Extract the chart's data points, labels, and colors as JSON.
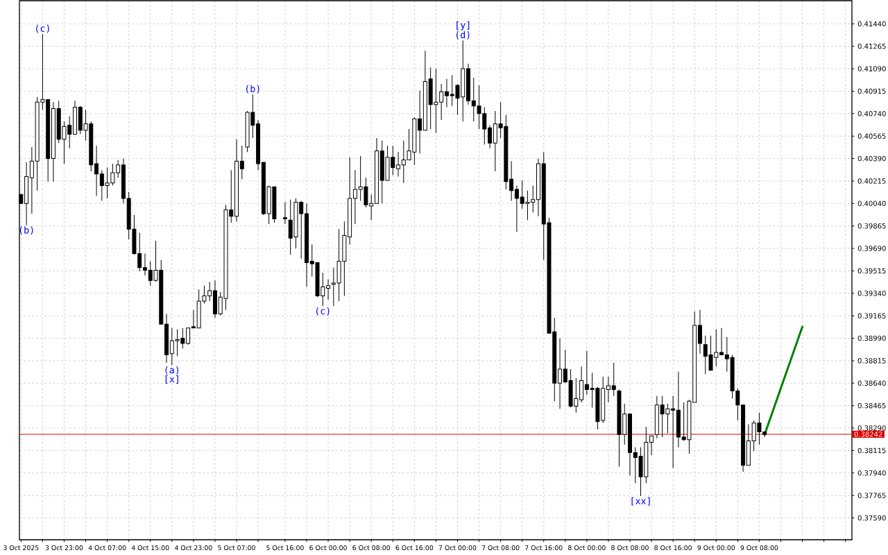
{
  "chart_data": {
    "type": "candlestick",
    "x": [
      "2025-10-03T15:00",
      "2025-10-03T16:00",
      "2025-10-03T17:00",
      "2025-10-03T18:00",
      "2025-10-03T19:00",
      "2025-10-03T20:00",
      "2025-10-03T21:00",
      "2025-10-03T22:00",
      "2025-10-03T23:00",
      "2025-10-04T00:00",
      "2025-10-04T01:00",
      "2025-10-04T02:00",
      "2025-10-04T03:00",
      "2025-10-04T04:00",
      "2025-10-04T05:00",
      "2025-10-04T06:00",
      "2025-10-04T07:00",
      "2025-10-04T08:00",
      "2025-10-04T09:00",
      "2025-10-04T10:00",
      "2025-10-04T11:00",
      "2025-10-04T12:00",
      "2025-10-04T13:00",
      "2025-10-04T14:00",
      "2025-10-04T15:00",
      "2025-10-04T16:00",
      "2025-10-04T17:00",
      "2025-10-04T18:00",
      "2025-10-04T19:00",
      "2025-10-04T20:00",
      "2025-10-04T21:00",
      "2025-10-04T22:00",
      "2025-10-04T23:00",
      "2025-10-05T00:00",
      "2025-10-05T01:00",
      "2025-10-05T02:00",
      "2025-10-05T03:00",
      "2025-10-05T04:00",
      "2025-10-05T05:00",
      "2025-10-05T06:00",
      "2025-10-05T07:00",
      "2025-10-05T08:00",
      "2025-10-05T09:00",
      "2025-10-05T10:00",
      "2025-10-05T11:00",
      "2025-10-05T12:00",
      "2025-10-05T13:00",
      "2025-10-05T14:00",
      "2025-10-05T16:00",
      "2025-10-05T17:00",
      "2025-10-05T18:00",
      "2025-10-05T19:00",
      "2025-10-05T20:00",
      "2025-10-05T21:00",
      "2025-10-05T22:00",
      "2025-10-05T23:00",
      "2025-10-06T00:00",
      "2025-10-06T01:00",
      "2025-10-06T02:00",
      "2025-10-06T03:00",
      "2025-10-06T04:00",
      "2025-10-06T05:00",
      "2025-10-06T06:00",
      "2025-10-06T07:00",
      "2025-10-06T08:00",
      "2025-10-06T09:00",
      "2025-10-06T10:00",
      "2025-10-06T11:00",
      "2025-10-06T12:00",
      "2025-10-06T13:00",
      "2025-10-06T14:00",
      "2025-10-06T15:00",
      "2025-10-06T16:00",
      "2025-10-06T17:00",
      "2025-10-06T18:00",
      "2025-10-06T19:00",
      "2025-10-06T20:00",
      "2025-10-06T21:00",
      "2025-10-06T22:00",
      "2025-10-06T23:00",
      "2025-10-07T00:00",
      "2025-10-07T01:00",
      "2025-10-07T02:00",
      "2025-10-07T03:00",
      "2025-10-07T04:00",
      "2025-10-07T05:00",
      "2025-10-07T06:00",
      "2025-10-07T07:00",
      "2025-10-07T08:00",
      "2025-10-07T09:00",
      "2025-10-07T10:00",
      "2025-10-07T11:00",
      "2025-10-07T12:00",
      "2025-10-07T13:00",
      "2025-10-07T14:00",
      "2025-10-07T15:00",
      "2025-10-07T16:00",
      "2025-10-07T17:00",
      "2025-10-07T18:00",
      "2025-10-07T19:00",
      "2025-10-07T20:00",
      "2025-10-07T21:00",
      "2025-10-07T22:00",
      "2025-10-07T23:00",
      "2025-10-08T00:00",
      "2025-10-08T01:00",
      "2025-10-08T02:00",
      "2025-10-08T03:00",
      "2025-10-08T04:00",
      "2025-10-08T05:00",
      "2025-10-08T06:00",
      "2025-10-08T07:00",
      "2025-10-08T08:00",
      "2025-10-08T09:00",
      "2025-10-08T10:00",
      "2025-10-08T11:00",
      "2025-10-08T12:00",
      "2025-10-08T13:00",
      "2025-10-08T14:00",
      "2025-10-08T15:00",
      "2025-10-08T16:00",
      "2025-10-08T17:00",
      "2025-10-08T18:00",
      "2025-10-08T19:00",
      "2025-10-08T20:00",
      "2025-10-08T21:00",
      "2025-10-08T22:00",
      "2025-10-08T23:00",
      "2025-10-09T00:00",
      "2025-10-09T01:00",
      "2025-10-09T02:00",
      "2025-10-09T03:00",
      "2025-10-09T04:00",
      "2025-10-09T05:00",
      "2025-10-09T06:00",
      "2025-10-09T07:00",
      "2025-10-09T08:00",
      "2025-10-09T09:00"
    ],
    "ohlc": [
      [
        0.4011,
        0.4011,
        0.4004,
        0.4004
      ],
      [
        0.4004,
        0.4036,
        0.3987,
        0.4025
      ],
      [
        0.4024,
        0.4048,
        0.3996,
        0.4037
      ],
      [
        0.4037,
        0.4087,
        0.4014,
        0.4083
      ],
      [
        0.4083,
        0.4136,
        0.4077,
        0.4085
      ],
      [
        0.4085,
        0.4085,
        0.4021,
        0.4039
      ],
      [
        0.4039,
        0.4083,
        0.4021,
        0.4078
      ],
      [
        0.4078,
        0.4084,
        0.4051,
        0.4054
      ],
      [
        0.4054,
        0.4068,
        0.4035,
        0.4064
      ],
      [
        0.4065,
        0.4072,
        0.4047,
        0.4058
      ],
      [
        0.4058,
        0.4084,
        0.4058,
        0.4079
      ],
      [
        0.4079,
        0.408,
        0.4058,
        0.4061
      ],
      [
        0.4061,
        0.4077,
        0.4053,
        0.4066
      ],
      [
        0.4066,
        0.4068,
        0.4029,
        0.4034
      ],
      [
        0.4035,
        0.4049,
        0.401,
        0.4027
      ],
      [
        0.4027,
        0.403,
        0.4006,
        0.4018
      ],
      [
        0.4018,
        0.4032,
        0.4008,
        0.402
      ],
      [
        0.402,
        0.4035,
        0.4018,
        0.4028
      ],
      [
        0.4028,
        0.4038,
        0.4024,
        0.4034
      ],
      [
        0.4034,
        0.4039,
        0.4004,
        0.4008
      ],
      [
        0.4008,
        0.4013,
        0.3976,
        0.3984
      ],
      [
        0.3984,
        0.3995,
        0.3964,
        0.3965
      ],
      [
        0.3965,
        0.3981,
        0.3951,
        0.3954
      ],
      [
        0.3954,
        0.3965,
        0.3948,
        0.3952
      ],
      [
        0.3952,
        0.3959,
        0.394,
        0.3944
      ],
      [
        0.3944,
        0.3975,
        0.3943,
        0.3952
      ],
      [
        0.3952,
        0.396,
        0.391,
        0.391
      ],
      [
        0.391,
        0.3918,
        0.388,
        0.3886
      ],
      [
        0.3887,
        0.3907,
        0.3878,
        0.3897
      ],
      [
        0.3897,
        0.3906,
        0.3885,
        0.3898
      ],
      [
        0.3899,
        0.3907,
        0.3891,
        0.3895
      ],
      [
        0.3895,
        0.3907,
        0.3894,
        0.3907
      ],
      [
        0.3908,
        0.3921,
        0.3907,
        0.3907
      ],
      [
        0.3907,
        0.3937,
        0.3907,
        0.3928
      ],
      [
        0.3928,
        0.394,
        0.3926,
        0.3932
      ],
      [
        0.3932,
        0.3943,
        0.3928,
        0.3936
      ],
      [
        0.3936,
        0.3944,
        0.3915,
        0.3918
      ],
      [
        0.3918,
        0.3935,
        0.3917,
        0.3931
      ],
      [
        0.393,
        0.4003,
        0.3921,
        0.3999
      ],
      [
        0.3999,
        0.403,
        0.3989,
        0.3994
      ],
      [
        0.3994,
        0.4054,
        0.399,
        0.4037
      ],
      [
        0.4037,
        0.4049,
        0.4023,
        0.4031
      ],
      [
        0.4048,
        0.4076,
        0.4044,
        0.4075
      ],
      [
        0.4075,
        0.4089,
        0.4055,
        0.4065
      ],
      [
        0.4066,
        0.4069,
        0.403,
        0.4035
      ],
      [
        0.4036,
        0.4036,
        0.3995,
        0.3996
      ],
      [
        0.3996,
        0.4018,
        0.3988,
        0.4017
      ],
      [
        0.4017,
        0.4017,
        0.3989,
        0.3992
      ],
      [
        0.3993,
        0.4005,
        0.3988,
        0.3992
      ],
      [
        0.3991,
        0.4007,
        0.3964,
        0.3977
      ],
      [
        0.3978,
        0.4008,
        0.3969,
        0.4005
      ],
      [
        0.4005,
        0.4006,
        0.3961,
        0.3996
      ],
      [
        0.3996,
        0.4004,
        0.3939,
        0.3958
      ],
      [
        0.3959,
        0.3972,
        0.3947,
        0.3957
      ],
      [
        0.3958,
        0.3958,
        0.3931,
        0.3932
      ],
      [
        0.3932,
        0.395,
        0.3924,
        0.3939
      ],
      [
        0.3938,
        0.3945,
        0.3929,
        0.394
      ],
      [
        0.3941,
        0.3954,
        0.3924,
        0.3942
      ],
      [
        0.3942,
        0.3984,
        0.3928,
        0.3959
      ],
      [
        0.3959,
        0.399,
        0.3932,
        0.3979
      ],
      [
        0.3978,
        0.404,
        0.3972,
        0.4008
      ],
      [
        0.4008,
        0.403,
        0.3988,
        0.4015
      ],
      [
        0.4015,
        0.4041,
        0.4006,
        0.4017
      ],
      [
        0.4017,
        0.4024,
        0.4001,
        0.4003
      ],
      [
        0.4002,
        0.4011,
        0.3991,
        0.4004
      ],
      [
        0.4004,
        0.4055,
        0.4004,
        0.4045
      ],
      [
        0.4045,
        0.4053,
        0.4004,
        0.4022
      ],
      [
        0.4022,
        0.4049,
        0.4022,
        0.404
      ],
      [
        0.404,
        0.4049,
        0.4026,
        0.4032
      ],
      [
        0.4031,
        0.4044,
        0.4025,
        0.4034
      ],
      [
        0.4034,
        0.4053,
        0.402,
        0.4038
      ],
      [
        0.4038,
        0.4062,
        0.4038,
        0.4045
      ],
      [
        0.4044,
        0.4071,
        0.4034,
        0.407
      ],
      [
        0.407,
        0.4092,
        0.4043,
        0.4061
      ],
      [
        0.4061,
        0.4123,
        0.4061,
        0.4099
      ],
      [
        0.4101,
        0.411,
        0.4062,
        0.4081
      ],
      [
        0.4081,
        0.4109,
        0.4059,
        0.4083
      ],
      [
        0.4083,
        0.4097,
        0.4069,
        0.4091
      ],
      [
        0.4091,
        0.4101,
        0.4079,
        0.4088
      ],
      [
        0.4089,
        0.4104,
        0.408,
        0.4088
      ],
      [
        0.4096,
        0.4097,
        0.4073,
        0.4086
      ],
      [
        0.4087,
        0.4131,
        0.4068,
        0.4109
      ],
      [
        0.4109,
        0.4113,
        0.4081,
        0.4084
      ],
      [
        0.4084,
        0.4102,
        0.4068,
        0.408
      ],
      [
        0.408,
        0.4096,
        0.4062,
        0.4074
      ],
      [
        0.4074,
        0.4079,
        0.405,
        0.4062
      ],
      [
        0.4063,
        0.4065,
        0.4047,
        0.4051
      ],
      [
        0.4051,
        0.4076,
        0.4029,
        0.4066
      ],
      [
        0.4066,
        0.4083,
        0.4055,
        0.4063
      ],
      [
        0.4064,
        0.4073,
        0.4015,
        0.4021
      ],
      [
        0.4023,
        0.4037,
        0.4006,
        0.4014
      ],
      [
        0.4015,
        0.4018,
        0.3982,
        0.4008
      ],
      [
        0.4009,
        0.4022,
        0.4,
        0.4004
      ],
      [
        0.4004,
        0.4014,
        0.3991,
        0.4005
      ],
      [
        0.4005,
        0.4018,
        0.3997,
        0.4007
      ],
      [
        0.4007,
        0.4039,
        0.3994,
        0.4035
      ],
      [
        0.4035,
        0.4044,
        0.396,
        0.3988
      ],
      [
        0.3989,
        0.3993,
        0.3903,
        0.3903
      ],
      [
        0.3904,
        0.3915,
        0.385,
        0.3864
      ],
      [
        0.3864,
        0.3899,
        0.3844,
        0.3875
      ],
      [
        0.3875,
        0.389,
        0.3864,
        0.3865
      ],
      [
        0.3866,
        0.3875,
        0.3845,
        0.3846
      ],
      [
        0.3846,
        0.3868,
        0.3841,
        0.3852
      ],
      [
        0.3851,
        0.3877,
        0.3849,
        0.3866
      ],
      [
        0.3863,
        0.3889,
        0.3855,
        0.3859
      ],
      [
        0.386,
        0.3872,
        0.3845,
        0.3859
      ],
      [
        0.386,
        0.3861,
        0.3828,
        0.3834
      ],
      [
        0.3835,
        0.3869,
        0.3833,
        0.386
      ],
      [
        0.3859,
        0.3869,
        0.3849,
        0.3862
      ],
      [
        0.3862,
        0.388,
        0.3854,
        0.3859
      ],
      [
        0.3858,
        0.3859,
        0.3799,
        0.3824
      ],
      [
        0.3824,
        0.3848,
        0.3816,
        0.384
      ],
      [
        0.384,
        0.384,
        0.3792,
        0.381
      ],
      [
        0.381,
        0.3814,
        0.3786,
        0.3806
      ],
      [
        0.3807,
        0.3814,
        0.3776,
        0.3791
      ],
      [
        0.3791,
        0.383,
        0.3786,
        0.3818
      ],
      [
        0.3818,
        0.3823,
        0.3808,
        0.3823
      ],
      [
        0.3824,
        0.3854,
        0.3821,
        0.3847
      ],
      [
        0.3847,
        0.3854,
        0.3822,
        0.384
      ],
      [
        0.384,
        0.3848,
        0.3825,
        0.3844
      ],
      [
        0.3844,
        0.3854,
        0.3798,
        0.3843
      ],
      [
        0.3843,
        0.3873,
        0.3814,
        0.3822
      ],
      [
        0.3822,
        0.3849,
        0.3819,
        0.382
      ],
      [
        0.382,
        0.3851,
        0.3809,
        0.385
      ],
      [
        0.3849,
        0.392,
        0.3849,
        0.3909
      ],
      [
        0.3909,
        0.3921,
        0.3887,
        0.3895
      ],
      [
        0.3894,
        0.3901,
        0.3871,
        0.3885
      ],
      [
        0.3886,
        0.3901,
        0.3874,
        0.3874
      ],
      [
        0.3884,
        0.3906,
        0.3877,
        0.3888
      ],
      [
        0.3888,
        0.3907,
        0.3886,
        0.3886
      ],
      [
        0.3886,
        0.39,
        0.3873,
        0.3883
      ],
      [
        0.3884,
        0.3886,
        0.3852,
        0.3858
      ],
      [
        0.3858,
        0.386,
        0.3835,
        0.3847
      ],
      [
        0.3847,
        0.3847,
        0.3795,
        0.38
      ],
      [
        0.38,
        0.3832,
        0.38,
        0.3819
      ],
      [
        0.3819,
        0.3835,
        0.3811,
        0.3833
      ],
      [
        0.3833,
        0.3841,
        0.3816,
        0.3826
      ],
      [
        0.3826,
        0.3826,
        0.3822,
        0.3824
      ]
    ],
    "series": [
      {
        "type": "line",
        "x": [
          "2025-10-09T09:00",
          "2025-10-09T16:00"
        ],
        "values": [
          0.3824,
          0.3908
        ],
        "color": "#008000"
      }
    ],
    "xlim": [
      "2025-10-03T14:42",
      "2025-10-10T01:12"
    ],
    "ylim": [
      0.3742,
      0.4162
    ],
    "xticks": [
      {
        "value": "2025-10-03T15:00",
        "label": "3 Oct 2025"
      },
      {
        "value": "2025-10-03T19:00",
        "label": null
      },
      {
        "value": "2025-10-03T23:00",
        "label": "3 Oct 23:00"
      },
      {
        "value": "2025-10-04T03:00",
        "label": null
      },
      {
        "value": "2025-10-04T07:00",
        "label": "4 Oct 07:00"
      },
      {
        "value": "2025-10-04T11:00",
        "label": null
      },
      {
        "value": "2025-10-04T15:00",
        "label": "4 Oct 15:00"
      },
      {
        "value": "2025-10-04T19:00",
        "label": null
      },
      {
        "value": "2025-10-04T23:00",
        "label": "4 Oct 23:00"
      },
      {
        "value": "2025-10-05T03:00",
        "label": null
      },
      {
        "value": "2025-10-05T07:00",
        "label": "5 Oct 07:00"
      },
      {
        "value": "2025-10-05T11:00",
        "label": null
      },
      {
        "value": "2025-10-05T16:00",
        "label": "5 Oct 16:00"
      },
      {
        "value": "2025-10-05T20:00",
        "label": null
      },
      {
        "value": "2025-10-06T00:00",
        "label": "6 Oct 00:00"
      },
      {
        "value": "2025-10-06T04:00",
        "label": null
      },
      {
        "value": "2025-10-06T08:00",
        "label": "6 Oct 08:00"
      },
      {
        "value": "2025-10-06T12:00",
        "label": null
      },
      {
        "value": "2025-10-06T16:00",
        "label": "6 Oct 16:00"
      },
      {
        "value": "2025-10-06T20:00",
        "label": null
      },
      {
        "value": "2025-10-07T00:00",
        "label": "7 Oct 00:00"
      },
      {
        "value": "2025-10-07T04:00",
        "label": null
      },
      {
        "value": "2025-10-07T08:00",
        "label": "7 Oct 08:00"
      },
      {
        "value": "2025-10-07T12:00",
        "label": null
      },
      {
        "value": "2025-10-07T16:00",
        "label": "7 Oct 16:00"
      },
      {
        "value": "2025-10-07T20:00",
        "label": null
      },
      {
        "value": "2025-10-08T00:00",
        "label": "8 Oct 00:00"
      },
      {
        "value": "2025-10-08T04:00",
        "label": null
      },
      {
        "value": "2025-10-08T08:00",
        "label": "8 Oct 08:00"
      },
      {
        "value": "2025-10-08T12:00",
        "label": null
      },
      {
        "value": "2025-10-08T16:00",
        "label": "8 Oct 16:00"
      },
      {
        "value": "2025-10-08T20:00",
        "label": null
      },
      {
        "value": "2025-10-09T00:00",
        "label": "9 Oct 00:00"
      },
      {
        "value": "2025-10-09T04:00",
        "label": null
      },
      {
        "value": "2025-10-09T08:00",
        "label": "9 Oct 08:00"
      },
      {
        "value": "2025-10-09T12:00",
        "label": null
      },
      {
        "value": "2025-10-09T16:00",
        "label": null
      },
      {
        "value": "2025-10-09T20:00",
        "label": null
      },
      {
        "value": "2025-10-10T00:00",
        "label": null
      }
    ],
    "yticks": [
      {
        "value": 0.3759,
        "label": "0.37590"
      },
      {
        "value": 0.37765,
        "label": "0.37765"
      },
      {
        "value": 0.3794,
        "label": "0.37940"
      },
      {
        "value": 0.38115,
        "label": "0.38115"
      },
      {
        "value": 0.3829,
        "label": "0.38290"
      },
      {
        "value": 0.38465,
        "label": "0.38465"
      },
      {
        "value": 0.3864,
        "label": "0.38640"
      },
      {
        "value": 0.38815,
        "label": "0.38815"
      },
      {
        "value": 0.3899,
        "label": "0.38990"
      },
      {
        "value": 0.39165,
        "label": "0.39165"
      },
      {
        "value": 0.3934,
        "label": "0.39340"
      },
      {
        "value": 0.39515,
        "label": "0.39515"
      },
      {
        "value": 0.3969,
        "label": "0.39690"
      },
      {
        "value": 0.39865,
        "label": "0.39865"
      },
      {
        "value": 0.4004,
        "label": "0.40040"
      },
      {
        "value": 0.40215,
        "label": "0.40215"
      },
      {
        "value": 0.4039,
        "label": "0.40390"
      },
      {
        "value": 0.40565,
        "label": "0.40565"
      },
      {
        "value": 0.4074,
        "label": "0.40740"
      },
      {
        "value": 0.40915,
        "label": "0.40915"
      },
      {
        "value": 0.4109,
        "label": "0.41090"
      },
      {
        "value": 0.41265,
        "label": "0.41265"
      },
      {
        "value": 0.4144,
        "label": "0.41440"
      }
    ],
    "grid": true,
    "ref_lines": [
      {
        "axis": "y",
        "value": 0.38242,
        "label": "0.38242",
        "color": "#dd0000"
      }
    ],
    "annotations": [
      {
        "text": "(c)",
        "x": "2025-10-03T19:00",
        "y": 0.4136
      },
      {
        "text": "(b)",
        "x": "2025-10-03T16:00",
        "y": 0.3987
      },
      {
        "text": "(b)",
        "x": "2025-10-05T10:00",
        "y": 0.4089
      },
      {
        "text": "(a)",
        "x": "2025-10-04T19:00",
        "y": 0.3878
      },
      {
        "text": "[x]",
        "x": "2025-10-04T19:00",
        "y": 0.3878
      },
      {
        "text": "(c)",
        "x": "2025-10-05T23:00",
        "y": 0.3924
      },
      {
        "text": "(d)",
        "x": "2025-10-07T01:00",
        "y": 0.4131
      },
      {
        "text": "[y]",
        "x": "2025-10-07T01:00",
        "y": 0.4131
      },
      {
        "text": "[xx]",
        "x": "2025-10-08T10:00",
        "y": 0.3776
      }
    ]
  }
}
